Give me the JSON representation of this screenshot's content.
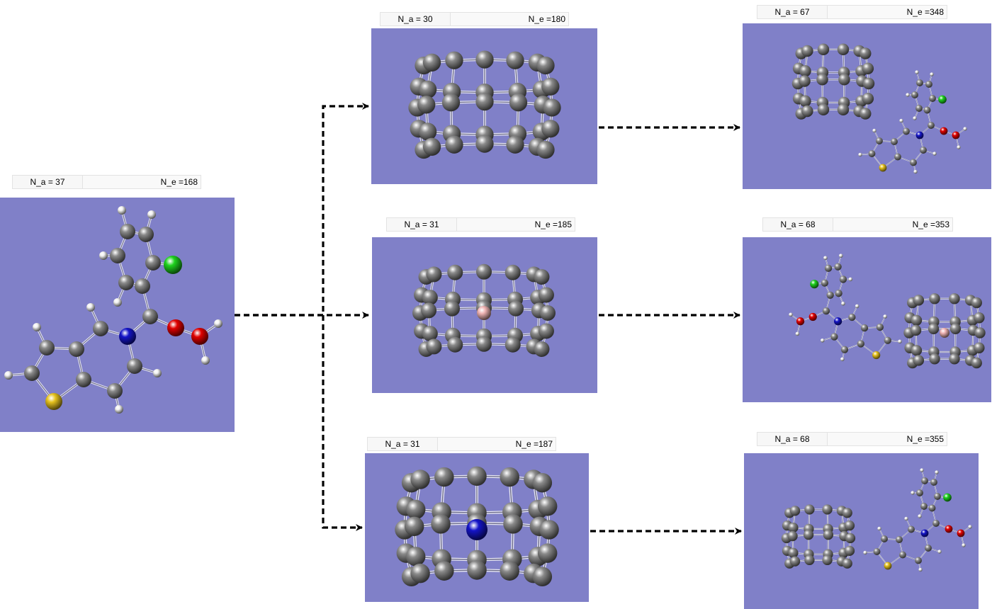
{
  "colors": {
    "panel_bg": "#8080c8",
    "carbon": "#8a8a8a",
    "hydrogen": "#f2f2f2",
    "nitrogen": "#1414c8",
    "oxygen": "#e00000",
    "sulfur": "#e6c21e",
    "chlorine": "#1ed21e",
    "boron": "#f0b4b4",
    "arrow": "#000000"
  },
  "molecules": [
    {
      "id": "parent",
      "na": "N_a = 37",
      "ne": "N_e =168"
    },
    {
      "id": "c30",
      "na": "N_a = 30",
      "ne": "N_e =180"
    },
    {
      "id": "b-doped",
      "na": "N_a = 31",
      "ne": "N_e =185"
    },
    {
      "id": "n-doped",
      "na": "N_a = 31",
      "ne": "N_e =187"
    },
    {
      "id": "complex-c30",
      "na": "N_a = 67",
      "ne": "N_e =348"
    },
    {
      "id": "complex-b",
      "na": "N_a = 68",
      "ne": "N_e =353"
    },
    {
      "id": "complex-n",
      "na": "N_a = 68",
      "ne": "N_e =355"
    }
  ]
}
